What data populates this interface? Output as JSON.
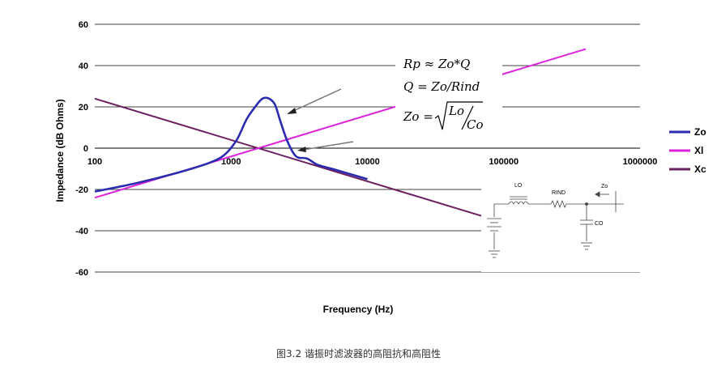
{
  "chart_data": {
    "type": "line",
    "xlabel": "Frequency (Hz)",
    "ylabel": "Impedance (dB Ohms)",
    "x_scale": "log",
    "xlim": [
      100,
      1000000
    ],
    "ylim": [
      -60,
      60
    ],
    "x_ticks": [
      "100",
      "1000",
      "10000",
      "100000",
      "1000000"
    ],
    "y_ticks": [
      "60",
      "40",
      "20",
      "0",
      "-20",
      "-40",
      "-60"
    ],
    "grid": "horizontal",
    "legend": "right",
    "series": [
      {
        "name": "Zo",
        "color": "#2b2bb0",
        "x": [
          100,
          200,
          400,
          700,
          900,
          1100,
          1300,
          1500,
          1700,
          1900,
          2100,
          2300,
          2600,
          3000,
          3600,
          4300,
          5500,
          7000,
          10000
        ],
        "y": [
          -21,
          -17,
          -12,
          -7,
          -3,
          4,
          14,
          20,
          24,
          24,
          21,
          13,
          3,
          -4,
          -5,
          -8,
          -10,
          -12,
          -15
        ]
      },
      {
        "name": "Xl",
        "color": "#dd22dd",
        "x": [
          100,
          400000
        ],
        "y": [
          -24,
          48
        ]
      },
      {
        "name": "Xc",
        "color": "#6b2060",
        "x": [
          100,
          70000
        ],
        "y": [
          24,
          -33
        ]
      }
    ],
    "annotations": {
      "formula_rp": "Rp ≈ Zo*Q",
      "formula_q": "Q = Zo/Rind",
      "formula_zo_lhs": "Zo =",
      "formula_zo_num": "Lo",
      "formula_zo_den": "Co",
      "schematic": {
        "lo": "LO",
        "rind": "RIND",
        "zo": "Zo",
        "co": "CO"
      }
    }
  },
  "caption": "图3.2 谐振时滤波器的高阻抗和高阻性"
}
